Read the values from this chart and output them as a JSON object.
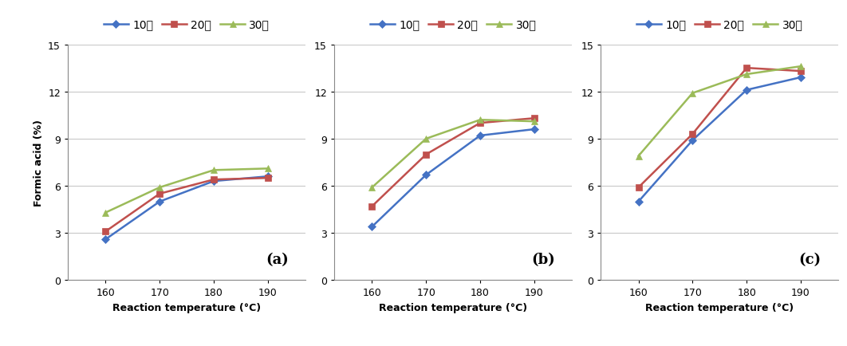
{
  "x": [
    160,
    170,
    180,
    190
  ],
  "panels": [
    {
      "label": "(a)",
      "series": {
        "10min": [
          2.6,
          5.0,
          6.3,
          6.6
        ],
        "20min": [
          3.1,
          5.5,
          6.4,
          6.5
        ],
        "30min": [
          4.3,
          5.9,
          7.0,
          7.1
        ]
      }
    },
    {
      "label": "(b)",
      "series": {
        "10min": [
          3.4,
          6.7,
          9.2,
          9.6
        ],
        "20min": [
          4.7,
          8.0,
          10.0,
          10.3
        ],
        "30min": [
          5.9,
          9.0,
          10.2,
          10.1
        ]
      }
    },
    {
      "label": "(c)",
      "series": {
        "10min": [
          5.0,
          8.9,
          12.1,
          12.9
        ],
        "20min": [
          5.9,
          9.3,
          13.5,
          13.3
        ],
        "30min": [
          7.9,
          11.9,
          13.1,
          13.6
        ]
      }
    }
  ],
  "ylim": [
    0,
    15
  ],
  "yticks": [
    0,
    3,
    6,
    9,
    12,
    15
  ],
  "xlabel": "Reaction temperature (°C)",
  "ylabel": "Formic acid (%)",
  "legend_labels": [
    "10분",
    "20분",
    "30분"
  ],
  "colors": {
    "10min": "#4472c4",
    "20min": "#c0504d",
    "30min": "#9bbb59"
  },
  "markers": {
    "10min": "D",
    "20min": "s",
    "30min": "^"
  },
  "background_color": "#ffffff",
  "grid_color": "#c8c8c8"
}
